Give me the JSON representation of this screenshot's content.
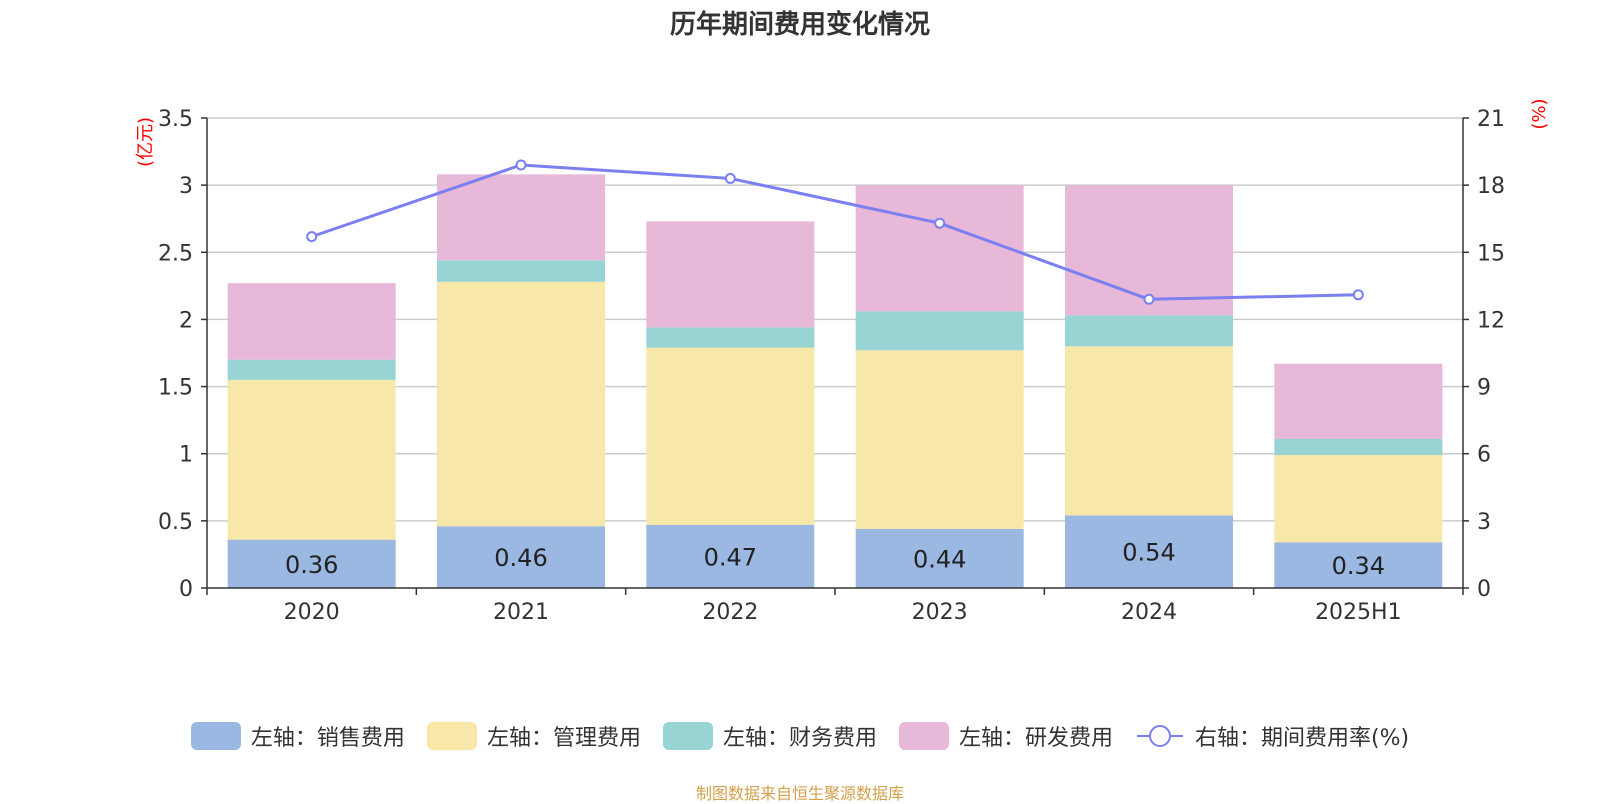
{
  "chart_data": {
    "type": "bar",
    "title": "历年期间费用变化情况",
    "categories": [
      "2020",
      "2021",
      "2022",
      "2023",
      "2024",
      "2025H1"
    ],
    "stacked": true,
    "y_left": {
      "label": "(亿元)",
      "ylim": [
        0,
        3.5
      ],
      "ticks": [
        "0",
        "0.5",
        "1",
        "1.5",
        "2",
        "2.5",
        "3",
        "3.5"
      ]
    },
    "y_right": {
      "label": "(%)",
      "ylim": [
        0,
        21
      ],
      "ticks": [
        "0",
        "3",
        "6",
        "9",
        "12",
        "15",
        "18",
        "21"
      ]
    },
    "series": [
      {
        "name": "左轴：销售费用",
        "axis": "left",
        "color": "#9bb8e2",
        "values": [
          0.36,
          0.46,
          0.47,
          0.44,
          0.54,
          0.34
        ],
        "data_labels": [
          "0.36",
          "0.46",
          "0.47",
          "0.44",
          "0.54",
          "0.34"
        ]
      },
      {
        "name": "左轴：管理费用",
        "axis": "left",
        "color": "#f7e7a8",
        "values": [
          1.19,
          1.82,
          1.32,
          1.33,
          1.26,
          0.65
        ]
      },
      {
        "name": "左轴：财务费用",
        "axis": "left",
        "color": "#98d4d4",
        "values": [
          0.15,
          0.16,
          0.15,
          0.29,
          0.23,
          0.12
        ]
      },
      {
        "name": "左轴：研发费用",
        "axis": "left",
        "color": "#e7b8d8",
        "values": [
          0.57,
          0.64,
          0.79,
          0.94,
          0.97,
          0.56
        ]
      },
      {
        "name": "右轴：期间费用率(%)",
        "axis": "right",
        "type": "line",
        "color": "#7b7ff0",
        "values": [
          15.7,
          18.9,
          18.3,
          16.3,
          12.9,
          13.1
        ]
      }
    ],
    "grid": true,
    "legend_position": "bottom"
  },
  "footer": {
    "source": "制图数据来自恒生聚源数据库"
  },
  "colors": {
    "axis_label": "#ff0000",
    "grid": "#cccccc",
    "axis_line": "#333333",
    "footer": "#d4a04c"
  }
}
